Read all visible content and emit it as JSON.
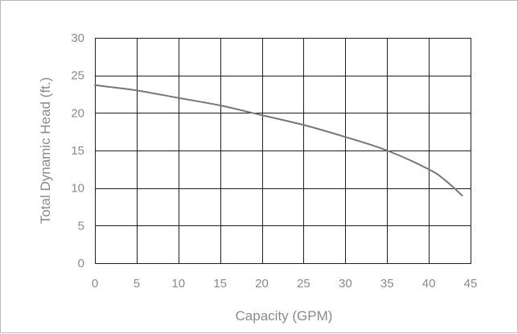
{
  "chart_data": {
    "type": "line",
    "title": "",
    "xlabel": "Capacity (GPM)",
    "ylabel": "Total Dynamic Head (ft.)",
    "xlim": [
      0,
      45
    ],
    "ylim": [
      0,
      30
    ],
    "x_ticks": [
      "0",
      "5",
      "10",
      "15",
      "20",
      "25",
      "30",
      "35",
      "40",
      "45"
    ],
    "y_ticks": [
      "0",
      "5",
      "10",
      "15",
      "20",
      "25",
      "30"
    ],
    "grid": true,
    "legend": "none",
    "series": [
      {
        "x": [
          0,
          5,
          10,
          15,
          20,
          25,
          30,
          35,
          40,
          42,
          44
        ],
        "y": [
          23.7,
          23.0,
          22.0,
          21.0,
          19.7,
          18.4,
          16.8,
          15.0,
          12.5,
          11.0,
          9.0
        ],
        "color": "#777777"
      }
    ]
  }
}
